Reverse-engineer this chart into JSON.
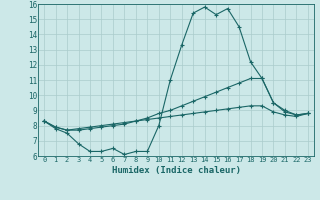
{
  "xlabel": "Humidex (Indice chaleur)",
  "xlim": [
    -0.5,
    23.5
  ],
  "ylim": [
    6,
    16
  ],
  "yticks": [
    6,
    7,
    8,
    9,
    10,
    11,
    12,
    13,
    14,
    15,
    16
  ],
  "xticks": [
    0,
    1,
    2,
    3,
    4,
    5,
    6,
    7,
    8,
    9,
    10,
    11,
    12,
    13,
    14,
    15,
    16,
    17,
    18,
    19,
    20,
    21,
    22,
    23
  ],
  "bg_color": "#cce8e8",
  "grid_color": "#aacccc",
  "line_color": "#1a6666",
  "line1_x": [
    0,
    1,
    2,
    3,
    4,
    5,
    6,
    7,
    8,
    9,
    10,
    11,
    12,
    13,
    14,
    15,
    16,
    17,
    18,
    19,
    20,
    21,
    22,
    23
  ],
  "line1_y": [
    8.3,
    7.8,
    7.5,
    6.8,
    6.3,
    6.3,
    6.5,
    6.1,
    6.3,
    6.3,
    8.0,
    11.0,
    13.3,
    15.4,
    15.8,
    15.3,
    15.7,
    14.5,
    12.2,
    11.1,
    9.5,
    9.0,
    8.7,
    8.8
  ],
  "line2_x": [
    0,
    1,
    2,
    3,
    4,
    5,
    6,
    7,
    8,
    9,
    10,
    11,
    12,
    13,
    14,
    15,
    16,
    17,
    18,
    19,
    20,
    21,
    22,
    23
  ],
  "line2_y": [
    8.3,
    7.9,
    7.7,
    7.7,
    7.8,
    7.9,
    8.0,
    8.1,
    8.3,
    8.5,
    8.8,
    9.0,
    9.3,
    9.6,
    9.9,
    10.2,
    10.5,
    10.8,
    11.1,
    11.1,
    9.5,
    8.9,
    8.7,
    8.8
  ],
  "line3_x": [
    0,
    1,
    2,
    3,
    4,
    5,
    6,
    7,
    8,
    9,
    10,
    11,
    12,
    13,
    14,
    15,
    16,
    17,
    18,
    19,
    20,
    21,
    22,
    23
  ],
  "line3_y": [
    8.3,
    7.9,
    7.7,
    7.8,
    7.9,
    8.0,
    8.1,
    8.2,
    8.3,
    8.4,
    8.5,
    8.6,
    8.7,
    8.8,
    8.9,
    9.0,
    9.1,
    9.2,
    9.3,
    9.3,
    8.9,
    8.7,
    8.6,
    8.8
  ]
}
